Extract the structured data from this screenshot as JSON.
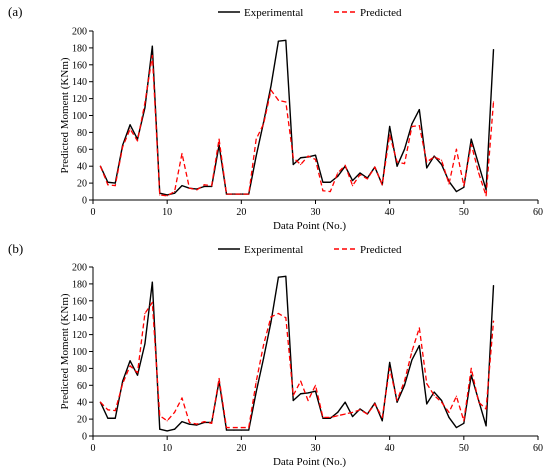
{
  "chart_data": [
    {
      "type": "line",
      "panel_label": "(a)",
      "xlabel": "Data Point (No.)",
      "ylabel": "Predicted Moment (KNm)",
      "xlim": [
        0,
        60
      ],
      "ylim": [
        0,
        200
      ],
      "xticks": [
        "0",
        "10",
        "20",
        "30",
        "40",
        "50",
        "60"
      ],
      "yticks": [
        "0",
        "20",
        "40",
        "60",
        "80",
        "100",
        "120",
        "140",
        "160",
        "180",
        "200"
      ],
      "grid": false,
      "legend": "top-center",
      "series": [
        {
          "name": "Experimental",
          "color": "#000000",
          "style": "solid",
          "x": [
            1,
            2,
            3,
            4,
            5,
            6,
            7,
            8,
            9,
            10,
            11,
            12,
            13,
            14,
            15,
            16,
            17,
            18,
            19,
            20,
            21,
            22,
            23,
            24,
            25,
            26,
            27,
            28,
            29,
            30,
            31,
            32,
            33,
            34,
            35,
            36,
            37,
            38,
            39,
            40,
            41,
            42,
            43,
            44,
            45,
            46,
            47,
            48,
            49,
            50,
            51,
            52,
            53,
            54
          ],
          "y": [
            40,
            21,
            20,
            65,
            89,
            72,
            109,
            182,
            8,
            6,
            8,
            17,
            14,
            13,
            16,
            16,
            65,
            7,
            7,
            7,
            7,
            52,
            92,
            135,
            188,
            189,
            42,
            50,
            51,
            53,
            21,
            21,
            28,
            40,
            23,
            32,
            26,
            39,
            18,
            87,
            40,
            60,
            90,
            107,
            38,
            52,
            42,
            22,
            10,
            15,
            72,
            42,
            12,
            178
          ]
        },
        {
          "name": "Predicted",
          "color": "#ff0000",
          "style": "dashed",
          "x": [
            1,
            2,
            3,
            4,
            5,
            6,
            7,
            8,
            9,
            10,
            11,
            12,
            13,
            14,
            15,
            16,
            17,
            18,
            19,
            20,
            21,
            22,
            23,
            24,
            25,
            26,
            27,
            28,
            29,
            30,
            31,
            32,
            33,
            34,
            35,
            36,
            37,
            38,
            39,
            40,
            41,
            42,
            43,
            44,
            45,
            46,
            47,
            48,
            49,
            50,
            51,
            52,
            53,
            54
          ],
          "y": [
            40,
            18,
            17,
            63,
            84,
            70,
            115,
            171,
            6,
            5,
            10,
            55,
            14,
            12,
            18,
            17,
            72,
            7,
            7,
            7,
            7,
            72,
            90,
            130,
            118,
            116,
            50,
            42,
            52,
            48,
            11,
            10,
            32,
            41,
            17,
            30,
            25,
            39,
            18,
            77,
            45,
            43,
            87,
            88,
            45,
            51,
            47,
            19,
            60,
            17,
            66,
            32,
            5,
            116
          ]
        }
      ]
    },
    {
      "type": "line",
      "panel_label": "(b)",
      "xlabel": "Data Point (No.)",
      "ylabel": "Predicted Moment (KNm)",
      "xlim": [
        0,
        60
      ],
      "ylim": [
        0,
        200
      ],
      "xticks": [
        "0",
        "10",
        "20",
        "30",
        "40",
        "50",
        "60"
      ],
      "yticks": [
        "0",
        "20",
        "40",
        "60",
        "80",
        "100",
        "120",
        "140",
        "160",
        "180",
        "200"
      ],
      "grid": false,
      "legend": "top-center",
      "series": [
        {
          "name": "Experimental",
          "color": "#000000",
          "style": "solid",
          "x": [
            1,
            2,
            3,
            4,
            5,
            6,
            7,
            8,
            9,
            10,
            11,
            12,
            13,
            14,
            15,
            16,
            17,
            18,
            19,
            20,
            21,
            22,
            23,
            24,
            25,
            26,
            27,
            28,
            29,
            30,
            31,
            32,
            33,
            34,
            35,
            36,
            37,
            38,
            39,
            40,
            41,
            42,
            43,
            44,
            45,
            46,
            47,
            48,
            49,
            50,
            51,
            52,
            53,
            54
          ],
          "y": [
            40,
            21,
            21,
            65,
            89,
            72,
            109,
            182,
            8,
            6,
            8,
            17,
            14,
            13,
            16,
            16,
            65,
            7,
            7,
            7,
            7,
            52,
            92,
            135,
            188,
            189,
            42,
            50,
            51,
            53,
            21,
            21,
            28,
            40,
            23,
            32,
            26,
            39,
            18,
            87,
            40,
            60,
            90,
            107,
            38,
            52,
            42,
            22,
            10,
            15,
            72,
            42,
            12,
            178
          ]
        },
        {
          "name": "Predicted",
          "color": "#ff0000",
          "style": "dashed",
          "x": [
            1,
            2,
            3,
            4,
            5,
            6,
            7,
            8,
            9,
            10,
            11,
            12,
            13,
            14,
            15,
            16,
            17,
            18,
            19,
            20,
            21,
            22,
            23,
            24,
            25,
            26,
            27,
            28,
            29,
            30,
            31,
            32,
            33,
            34,
            35,
            36,
            37,
            38,
            39,
            40,
            41,
            42,
            43,
            44,
            45,
            46,
            47,
            48,
            49,
            50,
            51,
            52,
            53,
            54
          ],
          "y": [
            40,
            31,
            30,
            62,
            83,
            75,
            145,
            158,
            24,
            18,
            28,
            45,
            16,
            14,
            17,
            15,
            68,
            10,
            10,
            10,
            10,
            64,
            108,
            141,
            145,
            140,
            48,
            65,
            42,
            60,
            22,
            22,
            24,
            26,
            28,
            31,
            26,
            38,
            22,
            80,
            42,
            65,
            100,
            128,
            62,
            48,
            40,
            28,
            47,
            18,
            80,
            40,
            32,
            136
          ]
        }
      ]
    }
  ]
}
